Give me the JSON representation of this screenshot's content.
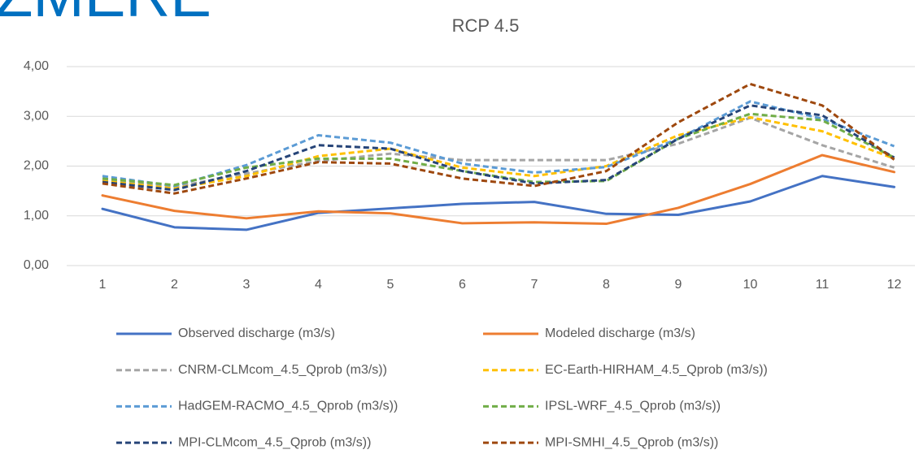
{
  "logo": "ZMERE",
  "chart_data": {
    "type": "line",
    "title": "RCP 4.5",
    "categories": [
      "1",
      "2",
      "3",
      "4",
      "5",
      "6",
      "7",
      "8",
      "9",
      "10",
      "11",
      "12"
    ],
    "ylim": [
      0,
      4
    ],
    "yticks": [
      {
        "value": 0,
        "label": "0,00"
      },
      {
        "value": 1,
        "label": "1,00"
      },
      {
        "value": 2,
        "label": "2,00"
      },
      {
        "value": 3,
        "label": "3,00"
      },
      {
        "value": 4,
        "label": "4,00"
      }
    ],
    "grid": true,
    "legend": "bottom",
    "series": [
      {
        "name": "Observed discharge (m3/s)",
        "color": "#4472c4",
        "dashed": false,
        "values": [
          1.14,
          0.77,
          0.72,
          1.06,
          1.15,
          1.24,
          1.28,
          1.04,
          1.02,
          1.29,
          1.8,
          1.58
        ]
      },
      {
        "name": "Modeled discharge (m3/s)",
        "color": "#ed7d31",
        "dashed": false,
        "values": [
          1.41,
          1.1,
          0.95,
          1.09,
          1.05,
          0.85,
          0.87,
          0.84,
          1.16,
          1.64,
          2.22,
          1.88
        ]
      },
      {
        "name": "CNRM-CLMcom_4.5_Qprob (m3/s))",
        "color": "#a5a5a5",
        "dashed": true,
        "values": [
          1.72,
          1.58,
          1.85,
          2.1,
          2.25,
          2.12,
          2.12,
          2.12,
          2.45,
          2.97,
          2.42,
          1.97
        ]
      },
      {
        "name": "EC-Earth-HIRHAM_4.5_Qprob (m3/s))",
        "color": "#ffc000",
        "dashed": true,
        "values": [
          1.7,
          1.55,
          1.8,
          2.2,
          2.35,
          1.97,
          1.8,
          2.0,
          2.62,
          2.98,
          2.7,
          2.15
        ]
      },
      {
        "name": "HadGEM-RACMO_4.5_Qprob (m3/s))",
        "color": "#5b9bd5",
        "dashed": true,
        "values": [
          1.8,
          1.6,
          2.02,
          2.62,
          2.47,
          2.05,
          1.87,
          1.98,
          2.55,
          3.3,
          2.95,
          2.4
        ]
      },
      {
        "name": "IPSL-WRF_4.5_Qprob (m3/s))",
        "color": "#70ad47",
        "dashed": true,
        "values": [
          1.75,
          1.62,
          1.97,
          2.15,
          2.15,
          1.9,
          1.68,
          1.7,
          2.55,
          3.05,
          2.92,
          2.17
        ]
      },
      {
        "name": "MPI-CLMcom_4.5_Qprob (m3/s))",
        "color": "#264478",
        "dashed": true,
        "values": [
          1.68,
          1.52,
          1.9,
          2.42,
          2.35,
          1.9,
          1.65,
          1.72,
          2.55,
          3.22,
          3.02,
          2.17
        ]
      },
      {
        "name": "MPI-SMHI_4.5_Qprob (m3/s))",
        "color": "#9e480e",
        "dashed": true,
        "values": [
          1.65,
          1.45,
          1.75,
          2.08,
          2.05,
          1.75,
          1.6,
          1.9,
          2.88,
          3.65,
          3.22,
          2.13
        ]
      }
    ]
  }
}
